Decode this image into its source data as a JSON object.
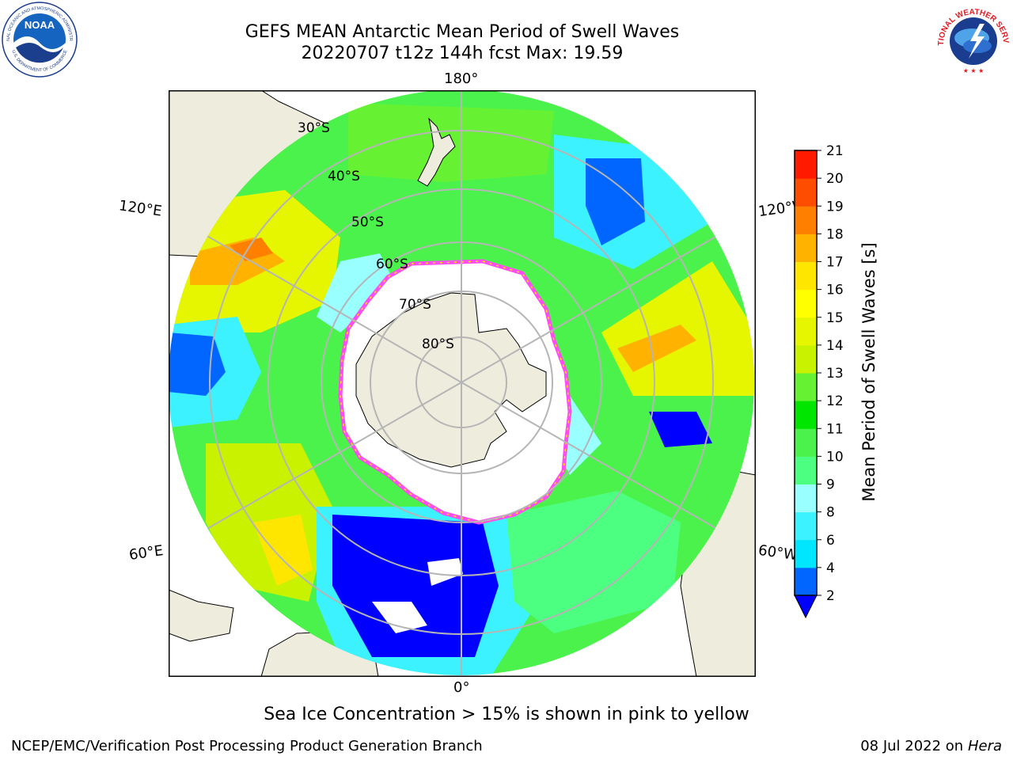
{
  "header": {
    "title_line1": "GEFS MEAN Antarctic Mean Period of Swell Waves",
    "title_line2": "20220707 t12z 144h fcst   Max: 19.59",
    "noaa_logo_text": "NOAA",
    "noaa_ring_text": "NATIONAL OCEANIC AND ATMOSPHERIC ADMINISTRATION",
    "noaa_ring_bottom": "U.S. DEPARTMENT OF COMMERCE",
    "nws_ring_text": "NATIONAL WEATHER SERVICE"
  },
  "map": {
    "projection": "south-polar-stereographic",
    "lon_labels": {
      "top": "180°",
      "bottom": "0°",
      "upper_left": "120°E",
      "upper_right": "120°W",
      "lower_left": "60°E",
      "lower_right": "60°W"
    },
    "lat_labels": [
      "30°S",
      "40°S",
      "50°S",
      "60°S",
      "70°S",
      "80°S"
    ],
    "colors": {
      "land": "#eeecdc",
      "ice": "#ffffff",
      "ice_edge": "#ff4cf0",
      "grid": "#b5b5b5"
    }
  },
  "chart_data": {
    "type": "heatmap",
    "title": "GEFS MEAN Antarctic Mean Period of Swell Waves",
    "colorbar": {
      "label": "Mean Period of Swell Waves [s]",
      "ticks": [
        "2",
        "4",
        "6",
        "8",
        "9",
        "10",
        "11",
        "12",
        "13",
        "14",
        "15",
        "16",
        "17",
        "18",
        "19",
        "20",
        "21"
      ],
      "bins": [
        {
          "from": 2,
          "to": 4,
          "color": "#0066ff"
        },
        {
          "from": 4,
          "to": 6,
          "color": "#00e6ff"
        },
        {
          "from": 6,
          "to": 8,
          "color": "#3df2ff"
        },
        {
          "from": 8,
          "to": 9,
          "color": "#99ffff"
        },
        {
          "from": 9,
          "to": 10,
          "color": "#4cff80"
        },
        {
          "from": 10,
          "to": 11,
          "color": "#4cf24c"
        },
        {
          "from": 11,
          "to": 12,
          "color": "#00e600"
        },
        {
          "from": 12,
          "to": 13,
          "color": "#66f233"
        },
        {
          "from": 13,
          "to": 14,
          "color": "#c8f200"
        },
        {
          "from": 14,
          "to": 15,
          "color": "#e6f500"
        },
        {
          "from": 15,
          "to": 16,
          "color": "#ffff00"
        },
        {
          "from": 16,
          "to": 17,
          "color": "#ffe600"
        },
        {
          "from": 17,
          "to": 18,
          "color": "#ffb300"
        },
        {
          "from": 18,
          "to": 19,
          "color": "#ff8000"
        },
        {
          "from": 19,
          "to": 20,
          "color": "#ff4d00"
        },
        {
          "from": 20,
          "to": 21,
          "color": "#ff1a00"
        }
      ],
      "under_color": "#0000ff",
      "extend": "min"
    },
    "max_value": 19.59,
    "forecast_hour": "144h",
    "init": "20220707 t12z"
  },
  "note": "Sea Ice Concentration > 15% is shown in pink to yellow",
  "footer": {
    "left": "NCEP/EMC/Verification Post Processing Product Generation Branch",
    "right_date": "08 Jul 2022 on ",
    "right_host": "Hera"
  }
}
